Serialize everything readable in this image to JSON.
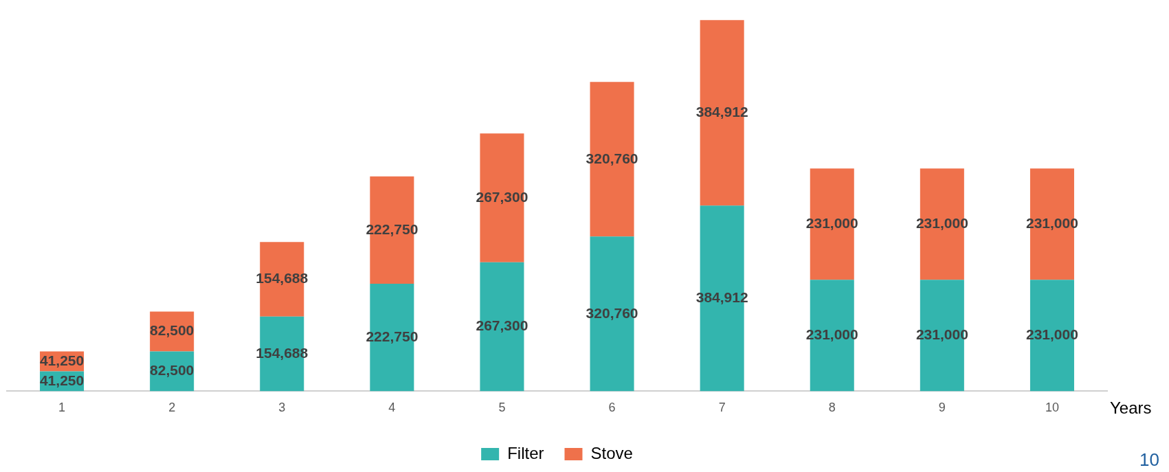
{
  "chart_data": {
    "type": "bar",
    "stacked": true,
    "xlabel": "Years",
    "categories": [
      "1",
      "2",
      "3",
      "4",
      "5",
      "6",
      "7",
      "8",
      "9",
      "10"
    ],
    "series": [
      {
        "name": "Filter",
        "color": "#33b5ae",
        "values": [
          41250,
          82500,
          154688,
          222750,
          267300,
          320760,
          384912,
          231000,
          231000,
          231000
        ],
        "value_labels": [
          "41,250",
          "82,500",
          "154,688",
          "222,750",
          "267,300",
          "320,760",
          "384,912",
          "231,000",
          "231,000",
          "231,000"
        ]
      },
      {
        "name": "Stove",
        "color": "#ef714b",
        "values": [
          41250,
          82500,
          154688,
          222750,
          267300,
          320760,
          384912,
          231000,
          231000,
          231000
        ],
        "value_labels": [
          "41,250",
          "82,500",
          "154,688",
          "222,750",
          "267,300",
          "320,760",
          "384,912",
          "231,000",
          "231,000",
          "231,000"
        ]
      }
    ],
    "grid": false,
    "legend": "bottom",
    "annotations": [
      "10"
    ]
  }
}
